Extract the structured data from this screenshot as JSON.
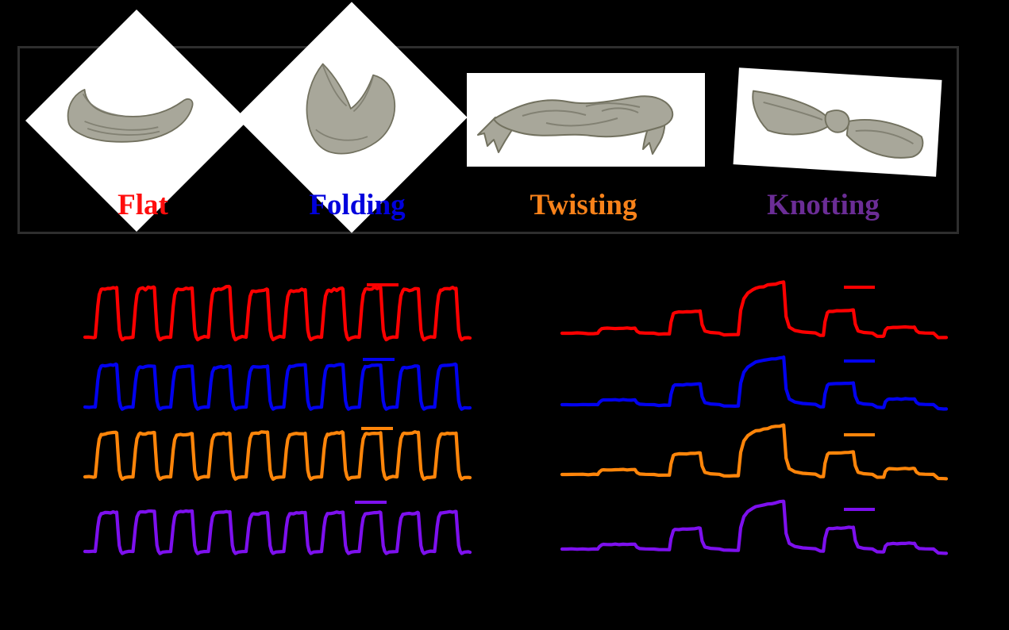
{
  "figure": {
    "background_color": "#000000",
    "frame_border_color": "#2e2e2e",
    "fabric_fill_color": "#a8a79a"
  },
  "top_panel": {
    "description": "Four fabric manipulation states shown as drawings on white frames",
    "items": [
      {
        "label": "Flat",
        "label_color": "#ff0d0d",
        "frame_shape": "diamond"
      },
      {
        "label": "Folding",
        "label_color": "#0000dd",
        "frame_shape": "diamond"
      },
      {
        "label": "Twisting",
        "label_color": "#f8821a",
        "frame_shape": "rectangle"
      },
      {
        "label": "Knotting",
        "label_color": "#6b2d96",
        "frame_shape": "tilted-rectangle"
      }
    ]
  },
  "chart_data": [
    {
      "id": "left",
      "type": "line",
      "title": "",
      "description": "Cyclic response: ten uniform square pulses per fabric state, stacked traces, no axes or tick labels shown",
      "axes_shown": false,
      "legend_shown": false,
      "scalebar_shown": true,
      "series": [
        {
          "name": "Flat",
          "color": "#ff0000",
          "pulse_count": 10,
          "relative_amplitude": 1.0
        },
        {
          "name": "Folding",
          "color": "#0202ee",
          "pulse_count": 10,
          "relative_amplitude": 1.0
        },
        {
          "name": "Twisting",
          "color": "#ff850a",
          "pulse_count": 10,
          "relative_amplitude": 1.0
        },
        {
          "name": "Knotting",
          "color": "#7d10ee",
          "pulse_count": 10,
          "relative_amplitude": 1.0
        }
      ]
    },
    {
      "id": "right",
      "type": "line",
      "title": "",
      "description": "Graded response: five pulses of rising then falling magnitude (small, medium, large, medium, small), stacked traces, no axes shown",
      "axes_shown": false,
      "legend_shown": false,
      "scalebar_shown": true,
      "pulse_relative_amplitudes": [
        0.1,
        0.43,
        1.0,
        0.45,
        0.12
      ],
      "pulse_windows": [
        [
          0.07,
          0.169
        ],
        [
          0.261,
          0.343
        ],
        [
          0.445,
          0.566
        ],
        [
          0.672,
          0.752
        ],
        [
          0.833,
          0.915
        ]
      ],
      "series": [
        {
          "name": "Flat",
          "color": "#ff0000"
        },
        {
          "name": "Folding",
          "color": "#0202ee"
        },
        {
          "name": "Twisting",
          "color": "#ff850a"
        },
        {
          "name": "Knotting",
          "color": "#7d10ee"
        }
      ]
    }
  ]
}
